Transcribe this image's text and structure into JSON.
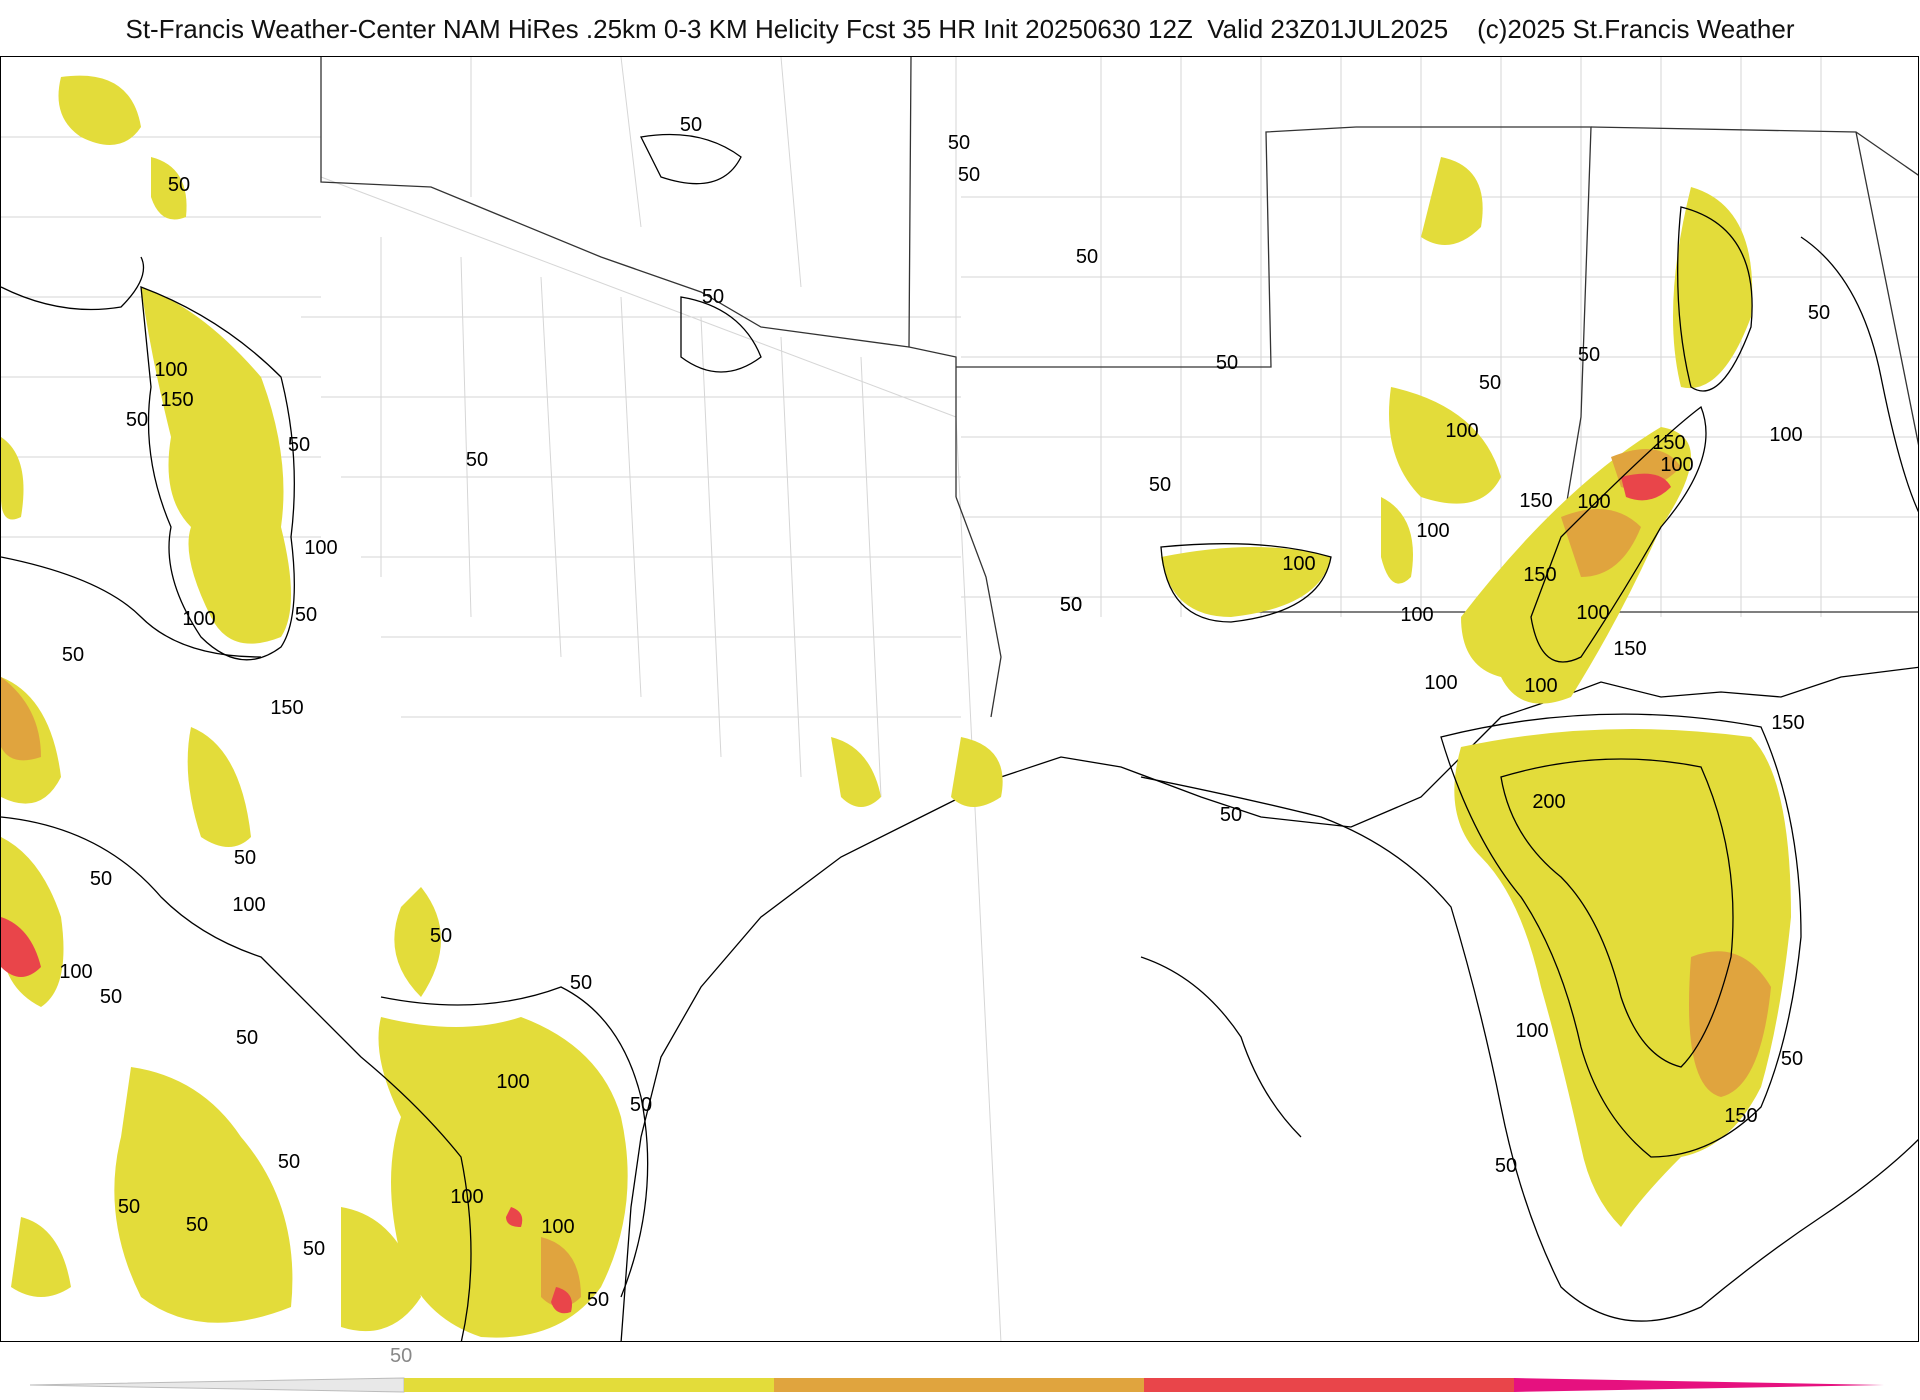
{
  "title": "St-Francis Weather-Center NAM HiRes .25km 0-3 KM Helicity Fcst 35 HR Init 20250630 12Z  Valid 23Z01JUL2025    (c)2025 St.Francis Weather",
  "colorbar": {
    "label": "50",
    "segments": [
      {
        "from": 50,
        "to": 100,
        "color": "#e3dc3a"
      },
      {
        "from": 100,
        "to": 150,
        "color": "#e0a43e"
      },
      {
        "from": 150,
        "to": 200,
        "color": "#e9454a"
      },
      {
        "from": 200,
        "to": 250,
        "color": "#e6117f"
      }
    ]
  },
  "contour_labels": [
    "50",
    "50",
    "50",
    "50",
    "50",
    "50",
    "50",
    "50",
    "50",
    "50",
    "50",
    "50",
    "50",
    "50",
    "50",
    "50",
    "50",
    "50",
    "50",
    "50",
    "50",
    "50",
    "50",
    "50",
    "50",
    "50",
    "50",
    "50",
    "50",
    "50",
    "50",
    "50",
    "50",
    "100",
    "100",
    "100",
    "100",
    "100",
    "100",
    "100",
    "100",
    "100",
    "100",
    "100",
    "100",
    "100",
    "100",
    "100",
    "100",
    "100",
    "100",
    "100",
    "150",
    "150",
    "150",
    "150",
    "150",
    "150",
    "150",
    "150",
    "200"
  ],
  "colors": {
    "shade_50": "#e3dc3a",
    "shade_100": "#e0a43e",
    "shade_150": "#e9454a",
    "shade_200": "#e6117f",
    "contour": "#000000",
    "border": "#cfcfcf",
    "state": "#333333"
  }
}
